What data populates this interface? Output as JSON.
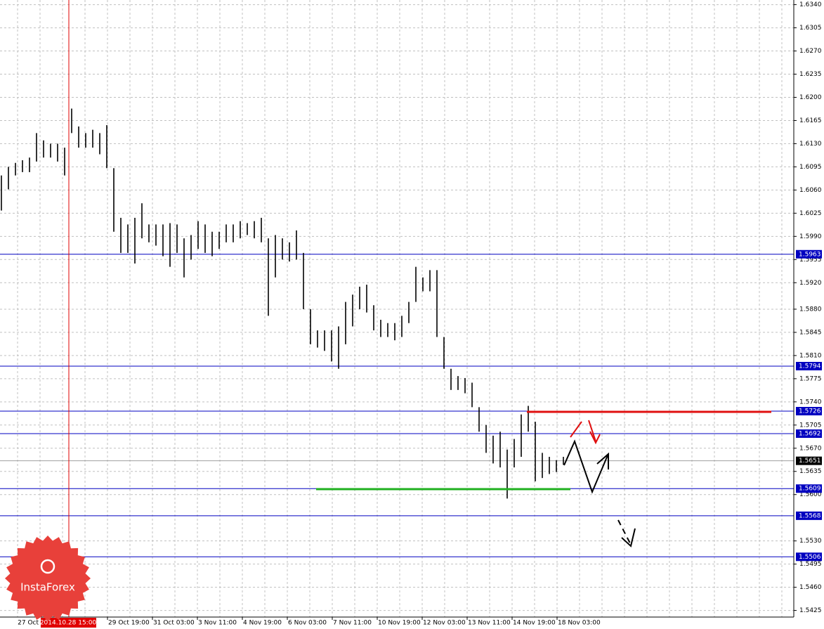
{
  "chart_data": {
    "type": "ohlc",
    "logo": "InstaForex",
    "crosshair_label": "2014.10.28 15:00",
    "first_date_label": "27 Oct",
    "x_labels": [
      "29 Oct 19:00",
      "31 Oct 03:00",
      "3 Nov 11:00",
      "4 Nov 19:00",
      "6 Nov 03:00",
      "7 Nov 11:00",
      "10 Nov 19:00",
      "12 Nov 03:00",
      "13 Nov 11:00",
      "14 Nov 19:00",
      "18 Nov 03:00"
    ],
    "high": [
      1.6082,
      1.6095,
      1.6101,
      1.6105,
      1.6109,
      1.6146,
      1.6135,
      1.613,
      1.613,
      1.6124,
      1.6183,
      1.6156,
      1.6146,
      1.6151,
      1.6146,
      1.6158,
      1.6093,
      1.6018,
      1.6008,
      1.6018,
      1.604,
      1.6008,
      1.6008,
      1.6008,
      1.601,
      1.6008,
      1.5987,
      1.5992,
      1.6013,
      1.6008,
      1.5997,
      1.5997,
      1.6008,
      1.6008,
      1.6013,
      1.601,
      1.6013,
      1.6018,
      1.5987,
      1.5992,
      1.5987,
      1.5981,
      1.5999,
      1.5965,
      1.588,
      1.5848,
      1.5848,
      1.5848,
      1.5854,
      1.5891,
      1.5902,
      1.5914,
      1.5917,
      1.5886,
      1.5864,
      1.5859,
      1.5859,
      1.587,
      1.5891,
      1.5944,
      1.5928,
      1.5939,
      1.5939,
      1.5838,
      1.579,
      1.5779,
      1.5776,
      1.5769,
      1.5732,
      1.5705,
      1.5689,
      1.5695,
      1.5668,
      1.5684,
      1.5721,
      1.5734,
      1.571,
      1.5663,
      1.5657,
      1.5652,
      1.5657
    ],
    "low": [
      1.6029,
      1.6061,
      1.6082,
      1.6087,
      1.6087,
      1.6103,
      1.6109,
      1.6109,
      1.6103,
      1.6082,
      1.6146,
      1.6124,
      1.6124,
      1.6124,
      1.6114,
      1.6093,
      1.5997,
      1.5965,
      1.5965,
      1.5949,
      1.5987,
      1.5981,
      1.5976,
      1.596,
      1.5944,
      1.5965,
      1.5928,
      1.5955,
      1.5971,
      1.5965,
      1.596,
      1.5971,
      1.5981,
      1.5981,
      1.5987,
      1.5992,
      1.5987,
      1.5981,
      1.587,
      1.5928,
      1.5955,
      1.5952,
      1.5955,
      1.588,
      1.5827,
      1.5822,
      1.5817,
      1.5801,
      1.579,
      1.5827,
      1.5854,
      1.588,
      1.5875,
      1.5848,
      1.5838,
      1.5838,
      1.5833,
      1.5838,
      1.5859,
      1.5891,
      1.5907,
      1.5907,
      1.5838,
      1.579,
      1.5758,
      1.5758,
      1.5753,
      1.5732,
      1.5695,
      1.5663,
      1.5647,
      1.5641,
      1.5594,
      1.5641,
      1.5657,
      1.5695,
      1.562,
      1.5625,
      1.5631,
      1.5634,
      1.5645
    ],
    "ylim": [
      1.5415,
      1.6347
    ],
    "yticks": [
      {
        "value": 1.634,
        "label": "1.6340"
      },
      1.6305,
      {
        "value": 1.627,
        "label": "1.6270"
      },
      1.6235,
      {
        "value": 1.62,
        "label": "1.6200"
      },
      1.6165,
      {
        "value": 1.613,
        "label": "1.6130"
      },
      1.6095,
      {
        "value": 1.606,
        "label": "1.6060"
      },
      1.6025,
      {
        "value": 1.599,
        "label": "1.5990"
      },
      1.5955,
      {
        "value": 1.592,
        "label": "1.5920"
      },
      {
        "value": 1.588,
        "label": "1.5880"
      },
      1.5845,
      {
        "value": 1.581,
        "label": "1.5810"
      },
      1.5775,
      {
        "value": 1.574,
        "label": "1.5740"
      },
      1.5705,
      {
        "value": 1.567,
        "label": "1.5670"
      },
      1.5635,
      {
        "value": 1.56,
        "label": "1.5600"
      },
      {
        "value": 1.553,
        "label": "1.5530"
      },
      1.5495,
      {
        "value": 1.546,
        "label": "1.5460"
      },
      1.5425
    ],
    "levels": [
      1.5963,
      1.5794,
      1.5726,
      1.5692,
      1.5609,
      1.5568,
      1.5506
    ],
    "current_price": 1.5651,
    "grid": true
  }
}
